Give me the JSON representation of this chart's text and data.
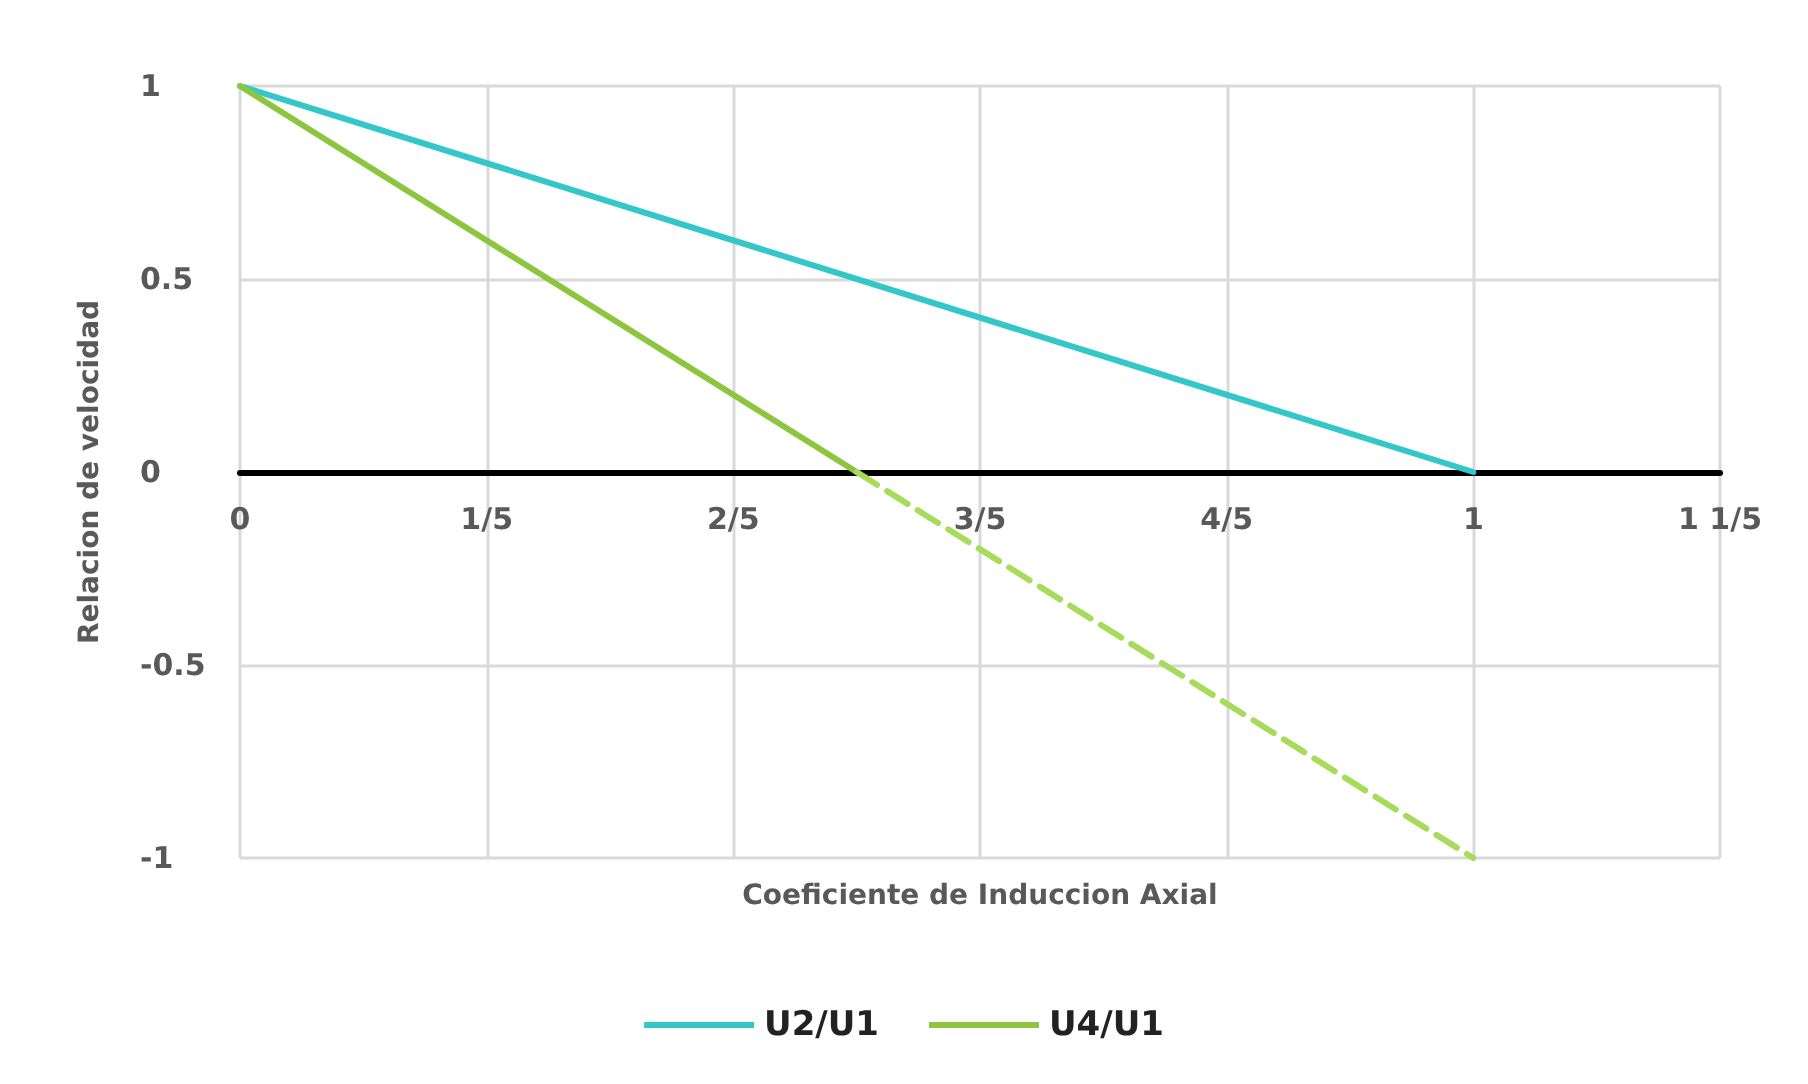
{
  "chart_data": {
    "type": "line",
    "xlabel": "Coeficiente de Induccion Axial",
    "ylabel": "Relacion de velocidad",
    "xlim": [
      0,
      1.2
    ],
    "xticks": [
      0,
      {
        "value": 0.2,
        "label": "1/5"
      },
      {
        "value": 0.4,
        "label": "2/5"
      },
      {
        "value": 0.6,
        "label": "3/5"
      },
      {
        "value": 0.8,
        "label": "4/5"
      },
      1,
      {
        "value": 1.2,
        "label": "1 1/5"
      }
    ],
    "ylim": [
      -1,
      1
    ],
    "yticks": [
      -1,
      -0.5,
      0,
      0.5,
      1
    ],
    "series": [
      {
        "name": "U2/U1",
        "color": "#33c7c9",
        "x": [
          0,
          1
        ],
        "values": [
          1,
          0
        ]
      },
      {
        "name": "U4/U1",
        "color": "#8cc63f",
        "x": [
          0,
          0.5
        ],
        "values": [
          1,
          0
        ]
      },
      {
        "color": "#a6dc5a",
        "x": [
          0.5,
          1
        ],
        "values": [
          0,
          -1
        ],
        "line_style": "dashed"
      }
    ],
    "grid": true,
    "legend": "bottom",
    "marker": "none",
    "line_style": "solid"
  }
}
